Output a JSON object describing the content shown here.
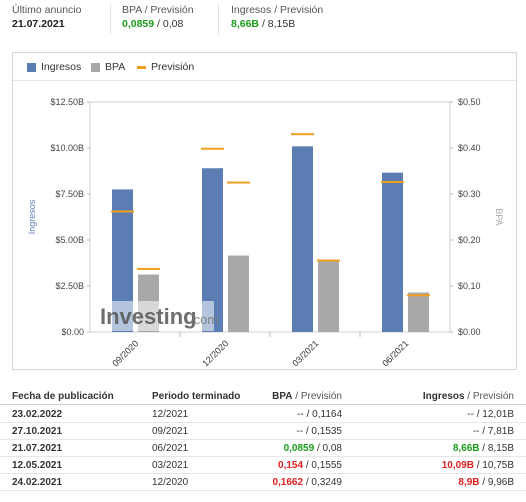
{
  "summary": {
    "last_announce_label": "Último anuncio",
    "last_announce_value": "21.07.2021",
    "bpa_label": "BPA / Previsión",
    "bpa_actual": "0,0859",
    "bpa_sep": " / ",
    "bpa_forecast": "0,08",
    "ing_label": "Ingresos / Previsión",
    "ing_actual": "8,66B",
    "ing_sep": " / ",
    "ing_forecast": "8,15B"
  },
  "legend": {
    "ingresos": "Ingresos",
    "bpa": "BPA",
    "prevision": "Previsión"
  },
  "colors": {
    "ingresos": "#5b7db3",
    "bpa": "#a8a8a8",
    "prevision": "#f0a020",
    "green": "#1a9e1a",
    "red": "#e02020"
  },
  "chart_data": {
    "type": "bar",
    "categories": [
      "09/2020",
      "12/2020",
      "03/2021",
      "06/2021"
    ],
    "series": [
      {
        "name": "Ingresos",
        "axis": "left",
        "values": [
          7.75,
          8.9,
          10.09,
          8.66
        ],
        "forecast": [
          6.55,
          9.96,
          10.75,
          8.15
        ]
      },
      {
        "name": "BPA",
        "axis": "right",
        "values": [
          0.125,
          0.1662,
          0.154,
          0.0859
        ],
        "forecast": [
          0.1371,
          0.3249,
          0.1555,
          0.08
        ]
      }
    ],
    "ylabel": "Ingresos",
    "y2label": "BPA",
    "yticks": [
      "$0.00",
      "$2.50B",
      "$5.00B",
      "$7.50B",
      "$10.00B",
      "$12.50B"
    ],
    "y2ticks": [
      "$0.00",
      "$0.10",
      "$0.20",
      "$0.30",
      "$0.40",
      "$0.50"
    ],
    "ylim": [
      0,
      12.5
    ],
    "y2lim": [
      0,
      0.5
    ],
    "watermark": "Investing",
    "watermark_suffix": ".com"
  },
  "table": {
    "headers": {
      "date": "Fecha de publicación",
      "period": "Periodo terminado",
      "bpa": "BPA",
      "bpa_fc": "Previsión",
      "ing": "Ingresos",
      "ing_fc": "Previsión",
      "sep": " / "
    },
    "rows": [
      {
        "date": "23.02.2022",
        "period": "12/2021",
        "bpa": "--",
        "bpa_fc": "0,1164",
        "ing": "--",
        "ing_fc": "12,01B",
        "bpa_color": "plain",
        "ing_color": "plain"
      },
      {
        "date": "27.10.2021",
        "period": "09/2021",
        "bpa": "--",
        "bpa_fc": "0,1535",
        "ing": "--",
        "ing_fc": "7,81B",
        "bpa_color": "plain",
        "ing_color": "plain"
      },
      {
        "date": "21.07.2021",
        "period": "06/2021",
        "bpa": "0,0859",
        "bpa_fc": "0,08",
        "ing": "8,66B",
        "ing_fc": "8,15B",
        "bpa_color": "green",
        "ing_color": "green"
      },
      {
        "date": "12.05.2021",
        "period": "03/2021",
        "bpa": "0,154",
        "bpa_fc": "0,1555",
        "ing": "10,09B",
        "ing_fc": "10,75B",
        "bpa_color": "red",
        "ing_color": "red"
      },
      {
        "date": "24.02.2021",
        "period": "12/2020",
        "bpa": "0,1662",
        "bpa_fc": "0,3249",
        "ing": "8,9B",
        "ing_fc": "9,96B",
        "bpa_color": "red",
        "ing_color": "red"
      }
    ]
  }
}
